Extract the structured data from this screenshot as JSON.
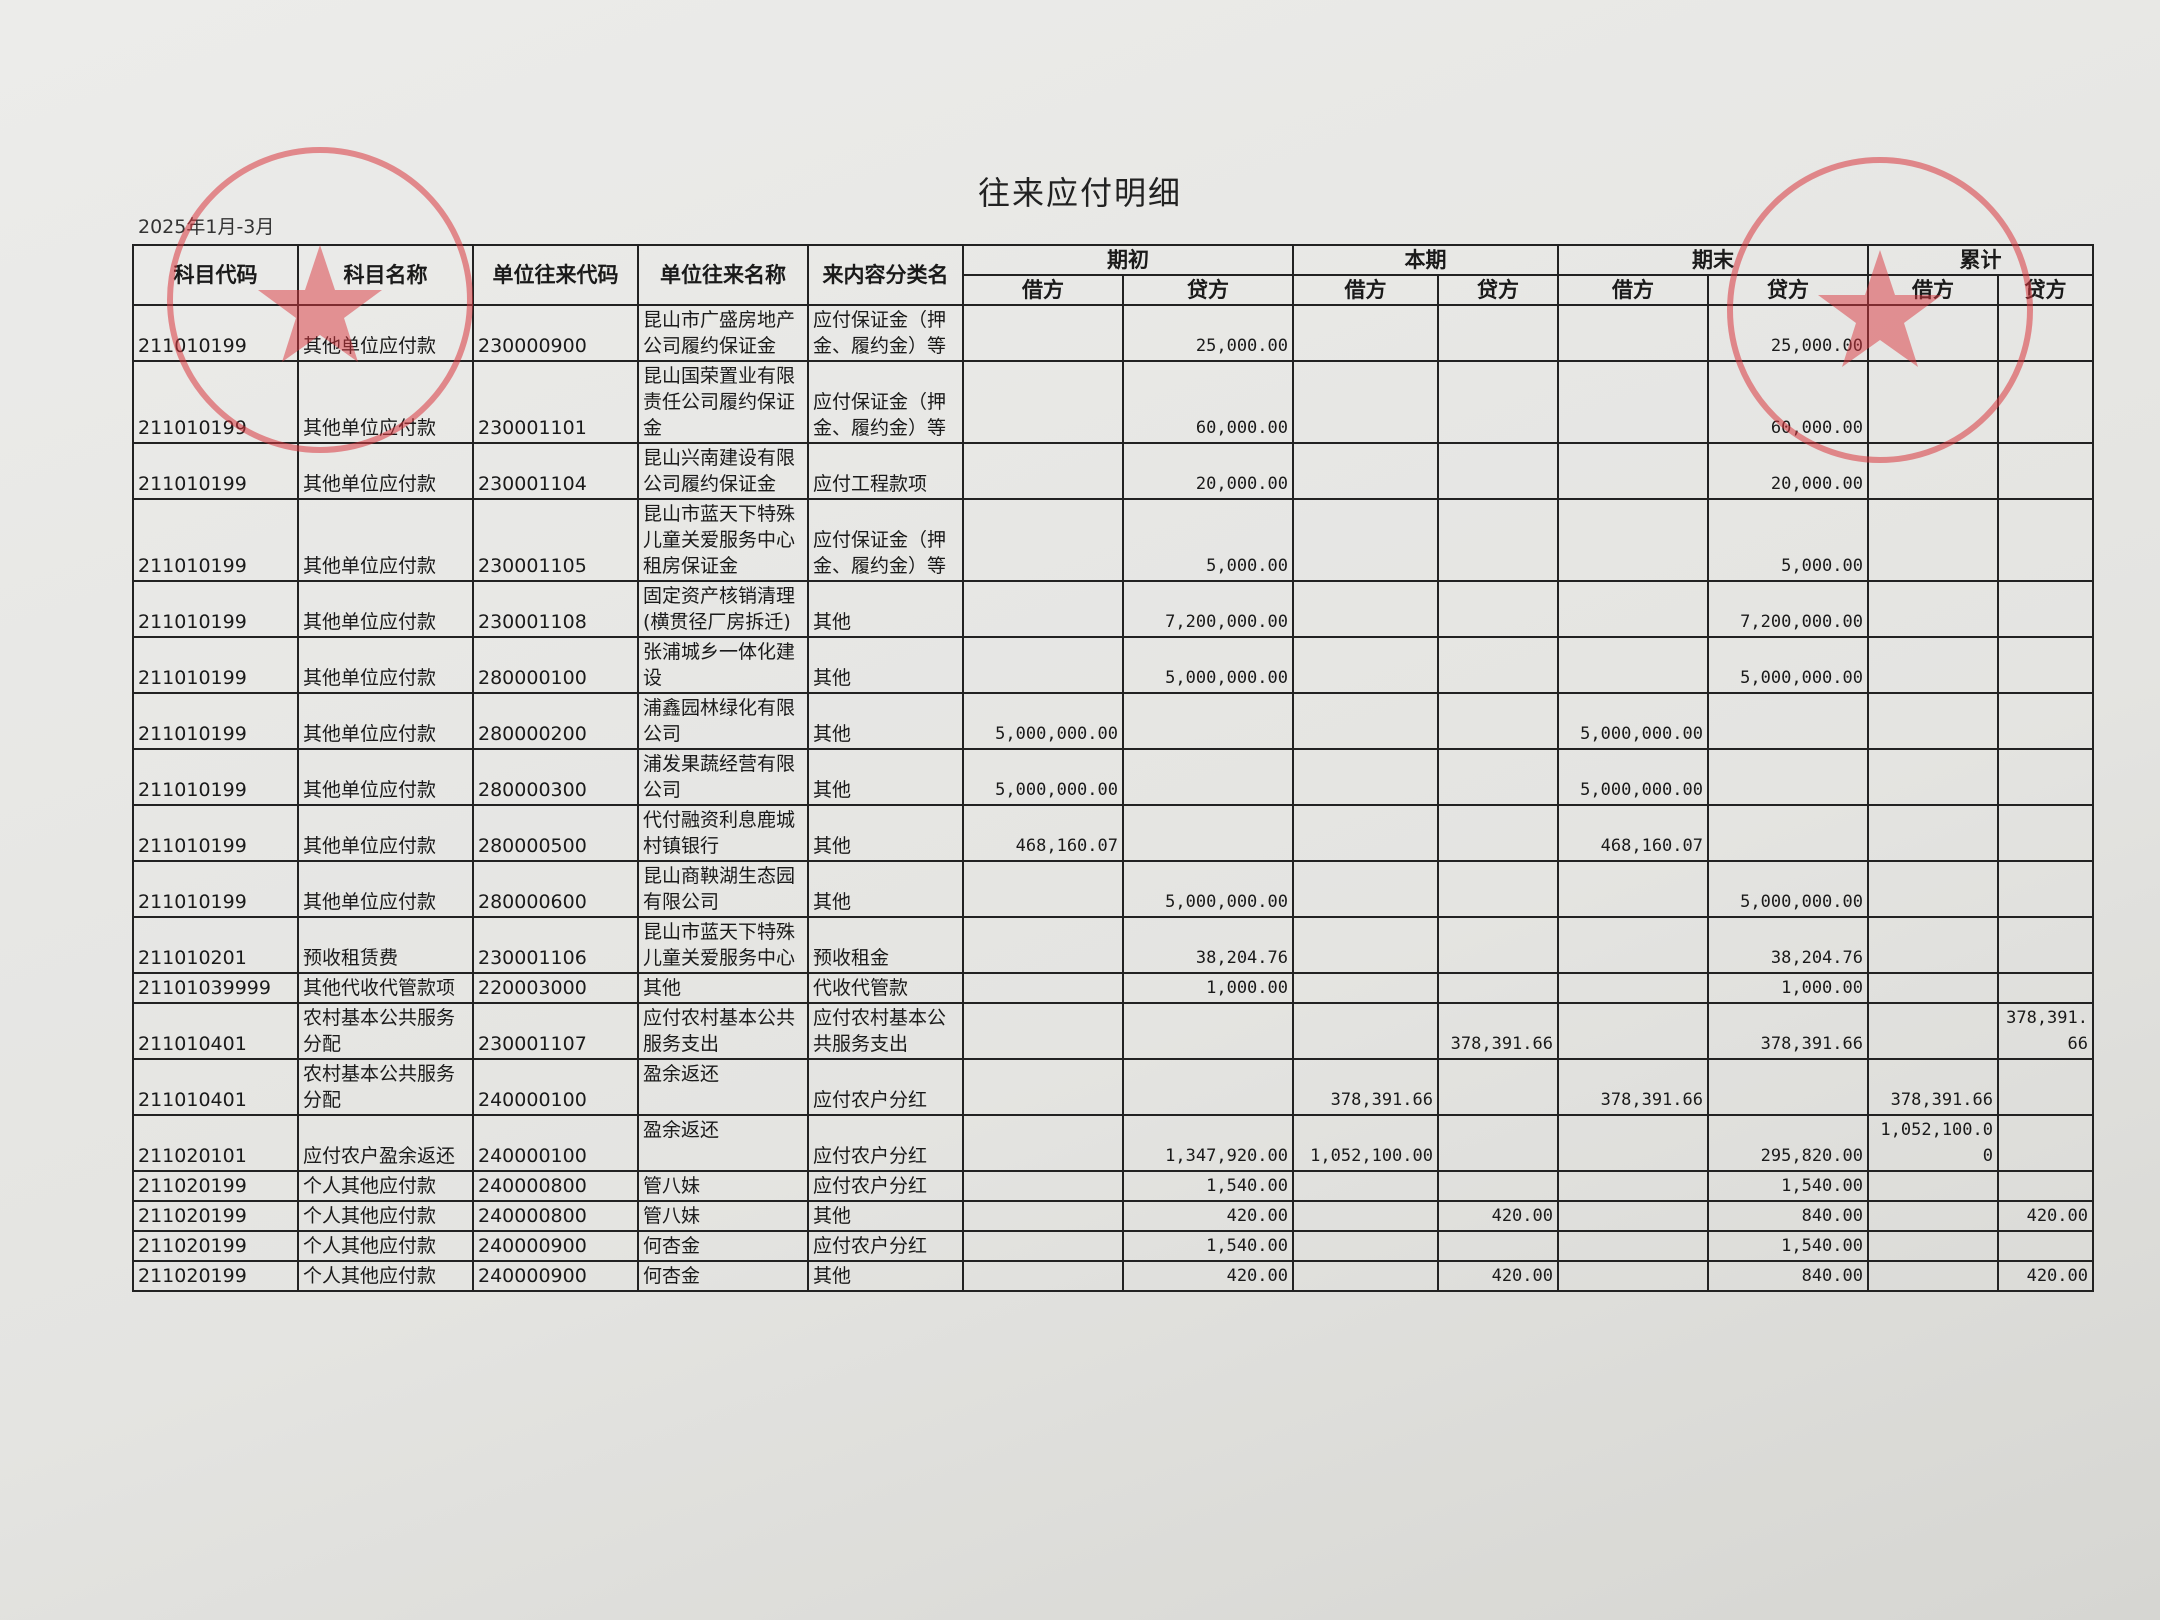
{
  "header": {
    "title": "往来应付明细",
    "period": "2025年1月-3月"
  },
  "table": {
    "columns": [
      "科目代码",
      "科目名称",
      "单位往来代码",
      "单位往来名称",
      "来内容分类名"
    ],
    "groups": [
      "期初",
      "本期",
      "期末",
      "累计"
    ],
    "sub": [
      "借方",
      "贷方"
    ],
    "rows": [
      [
        "211010199",
        "其他单位应付款",
        "230000900",
        "昆山市广盛房地产公司履约保证金",
        "应付保证金（押金、履约金）等",
        null,
        "25,000.00",
        null,
        null,
        null,
        "25,000.00",
        null,
        null
      ],
      [
        "211010199",
        "其他单位应付款",
        "230001101",
        "昆山国荣置业有限责任公司履约保证金",
        "应付保证金（押金、履约金）等",
        null,
        "60,000.00",
        null,
        null,
        null,
        "60,000.00",
        null,
        null
      ],
      [
        "211010199",
        "其他单位应付款",
        "230001104",
        "昆山兴南建设有限公司履约保证金",
        "应付工程款项",
        null,
        "20,000.00",
        null,
        null,
        null,
        "20,000.00",
        null,
        null
      ],
      [
        "211010199",
        "其他单位应付款",
        "230001105",
        "昆山市蓝天下特殊儿童关爱服务中心租房保证金",
        "应付保证金（押金、履约金）等",
        null,
        "5,000.00",
        null,
        null,
        null,
        "5,000.00",
        null,
        null
      ],
      [
        "211010199",
        "其他单位应付款",
        "230001108",
        "固定资产核销清理(横贯径厂房拆迁)",
        "其他",
        null,
        "7,200,000.00",
        null,
        null,
        null,
        "7,200,000.00",
        null,
        null
      ],
      [
        "211010199",
        "其他单位应付款",
        "280000100",
        "张浦城乡一体化建设",
        "其他",
        null,
        "5,000,000.00",
        null,
        null,
        null,
        "5,000,000.00",
        null,
        null
      ],
      [
        "211010199",
        "其他单位应付款",
        "280000200",
        "浦鑫园林绿化有限公司",
        "其他",
        "5,000,000.00",
        null,
        null,
        null,
        "5,000,000.00",
        null,
        null,
        null
      ],
      [
        "211010199",
        "其他单位应付款",
        "280000300",
        "浦发果蔬经营有限公司",
        "其他",
        "5,000,000.00",
        null,
        null,
        null,
        "5,000,000.00",
        null,
        null,
        null
      ],
      [
        "211010199",
        "其他单位应付款",
        "280000500",
        "代付融资利息鹿城村镇银行",
        "其他",
        "468,160.07",
        null,
        null,
        null,
        "468,160.07",
        null,
        null,
        null
      ],
      [
        "211010199",
        "其他单位应付款",
        "280000600",
        "昆山商鞅湖生态园有限公司",
        "其他",
        null,
        "5,000,000.00",
        null,
        null,
        null,
        "5,000,000.00",
        null,
        null
      ],
      [
        "211010201",
        "预收租赁费",
        "230001106",
        "昆山市蓝天下特殊儿童关爱服务中心",
        "预收租金",
        null,
        "38,204.76",
        null,
        null,
        null,
        "38,204.76",
        null,
        null
      ],
      [
        "21101039999",
        "其他代收代管款项",
        "220003000",
        "其他",
        "代收代管款",
        null,
        "1,000.00",
        null,
        null,
        null,
        "1,000.00",
        null,
        null
      ],
      [
        "211010401",
        "农村基本公共服务分配",
        "230001107",
        "应付农村基本公共服务支出",
        "应付农村基本公共服务支出",
        null,
        null,
        null,
        "378,391.66",
        null,
        "378,391.66",
        null,
        "378,391.66"
      ],
      [
        "211010401",
        "农村基本公共服务分配",
        "240000100",
        "盈余返还",
        "应付农户分红",
        null,
        null,
        "378,391.66",
        null,
        "378,391.66",
        null,
        "378,391.66",
        null
      ],
      [
        "211020101",
        "应付农户盈余返还",
        "240000100",
        "盈余返还",
        "应付农户分红",
        null,
        "1,347,920.00",
        "1,052,100.00",
        null,
        null,
        "295,820.00",
        "1,052,100.00",
        null
      ],
      [
        "211020199",
        "个人其他应付款",
        "240000800",
        "管八妹",
        "应付农户分红",
        null,
        "1,540.00",
        null,
        null,
        null,
        "1,540.00",
        null,
        null
      ],
      [
        "211020199",
        "个人其他应付款",
        "240000800",
        "管八妹",
        "其他",
        null,
        "420.00",
        null,
        "420.00",
        null,
        "840.00",
        null,
        "420.00"
      ],
      [
        "211020199",
        "个人其他应付款",
        "240000900",
        "何杏金",
        "应付农户分红",
        null,
        "1,540.00",
        null,
        null,
        null,
        "1,540.00",
        null,
        null
      ],
      [
        "211020199",
        "个人其他应付款",
        "240000900",
        "何杏金",
        "其他",
        null,
        "420.00",
        null,
        "420.00",
        null,
        "840.00",
        null,
        "420.00"
      ]
    ]
  }
}
